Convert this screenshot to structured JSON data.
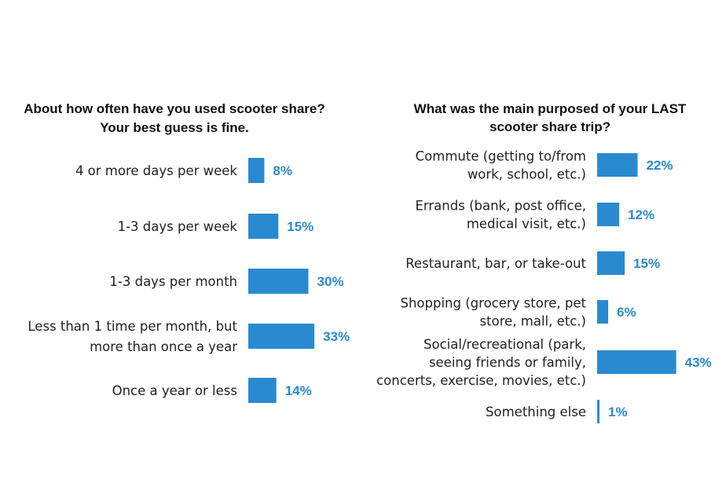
{
  "chart_data": [
    {
      "type": "bar",
      "orientation": "horizontal",
      "title": "About how often have you used scooter share? Your best guess is fine.",
      "title_lines": [
        "About how often have you used scooter share?",
        "Your best guess is fine."
      ],
      "categories": [
        [
          "4 or more days per week"
        ],
        [
          "1-3 days per week"
        ],
        [
          "1-3 days per month"
        ],
        [
          "Less than 1 time per month, but",
          "more than once a year"
        ],
        [
          "Once a year or less"
        ]
      ],
      "values": [
        8,
        15,
        30,
        33,
        14
      ],
      "value_labels": [
        "8%",
        "15%",
        "30%",
        "33%",
        "14%"
      ],
      "unit": "%"
    },
    {
      "type": "bar",
      "orientation": "horizontal",
      "title": "What was the main purposed of your LAST scooter share trip?",
      "title_lines": [
        "What was the main purposed of your LAST",
        "scooter share trip?"
      ],
      "categories": [
        [
          "Commute (getting to/from",
          "work, school, etc.)"
        ],
        [
          "Errands (bank, post office,",
          "medical visit, etc.)"
        ],
        [
          "Restaurant, bar, or take-out"
        ],
        [
          "Shopping (grocery store, pet",
          "store, mall, etc.)"
        ],
        [
          "Social/recreational (park,",
          "seeing friends or family,",
          "concerts, exercise, movies, etc.)"
        ],
        [
          "Something else"
        ]
      ],
      "values": [
        22,
        12,
        15,
        6,
        43,
        1
      ],
      "value_labels": [
        "22%",
        "12%",
        "15%",
        "6%",
        "43%",
        "1%"
      ],
      "unit": "%"
    }
  ],
  "colors": {
    "bar": "#2a8ad0",
    "value_label": "#2a8ad0"
  }
}
